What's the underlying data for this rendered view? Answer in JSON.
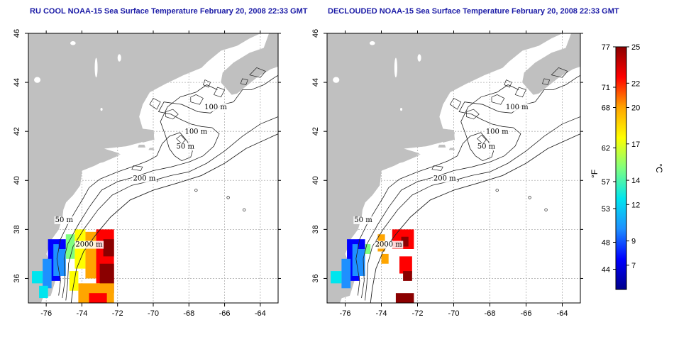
{
  "titles": {
    "left": "RU COOL NOAA-15 Sea Surface Temperature February 20, 2008 22:33 GMT",
    "right": "DECLOUDED NOAA-15 Sea Surface Temperature February 20, 2008 22:33 GMT"
  },
  "map": {
    "lon_range": [
      -77,
      -63
    ],
    "lat_range": [
      35,
      46
    ],
    "lon_ticks": [
      -76,
      -74,
      -72,
      -70,
      -68,
      -66,
      -64
    ],
    "lat_ticks": [
      36,
      38,
      40,
      42,
      44,
      46
    ],
    "lon_tick_labels": [
      "-76",
      "-74",
      "-72",
      "-70",
      "-68",
      "-66",
      "-64"
    ],
    "lat_tick_labels": [
      "36",
      "38",
      "40",
      "42",
      "44",
      "46"
    ],
    "land_color": "#c0c0c0",
    "grid": "dotted",
    "contour_labels": [
      {
        "text": "100 m",
        "lon": -66.5,
        "lat": 42.9
      },
      {
        "text": "100 m",
        "lon": -67.6,
        "lat": 41.9
      },
      {
        "text": "50 m",
        "lon": -68.2,
        "lat": 41.3
      },
      {
        "text": "200 m",
        "lon": -70.5,
        "lat": 40.0
      },
      {
        "text": "50 m",
        "lon": -75.0,
        "lat": 38.3
      },
      {
        "text": "2000 m",
        "lon": -73.6,
        "lat": 37.3
      }
    ]
  },
  "colorbar": {
    "fahrenheit_label": "°F",
    "celsius_label": "°C",
    "celsius_range": [
      5,
      25
    ],
    "fahrenheit_ticks": [
      "77",
      "71",
      "68",
      "62",
      "57",
      "53",
      "48",
      "44"
    ],
    "fahrenheit_values": [
      77,
      71,
      68,
      62,
      57,
      53,
      48,
      44
    ],
    "celsius_ticks": [
      "25",
      "22",
      "20",
      "17",
      "14",
      "12",
      "9",
      "7"
    ],
    "celsius_values": [
      25,
      22,
      20,
      17,
      14,
      12,
      9,
      7
    ],
    "stops": [
      "#00008b",
      "#0000ff",
      "#1e90ff",
      "#00e5ee",
      "#7fff7f",
      "#ffff00",
      "#ffa500",
      "#ff0000",
      "#8b0000"
    ]
  }
}
